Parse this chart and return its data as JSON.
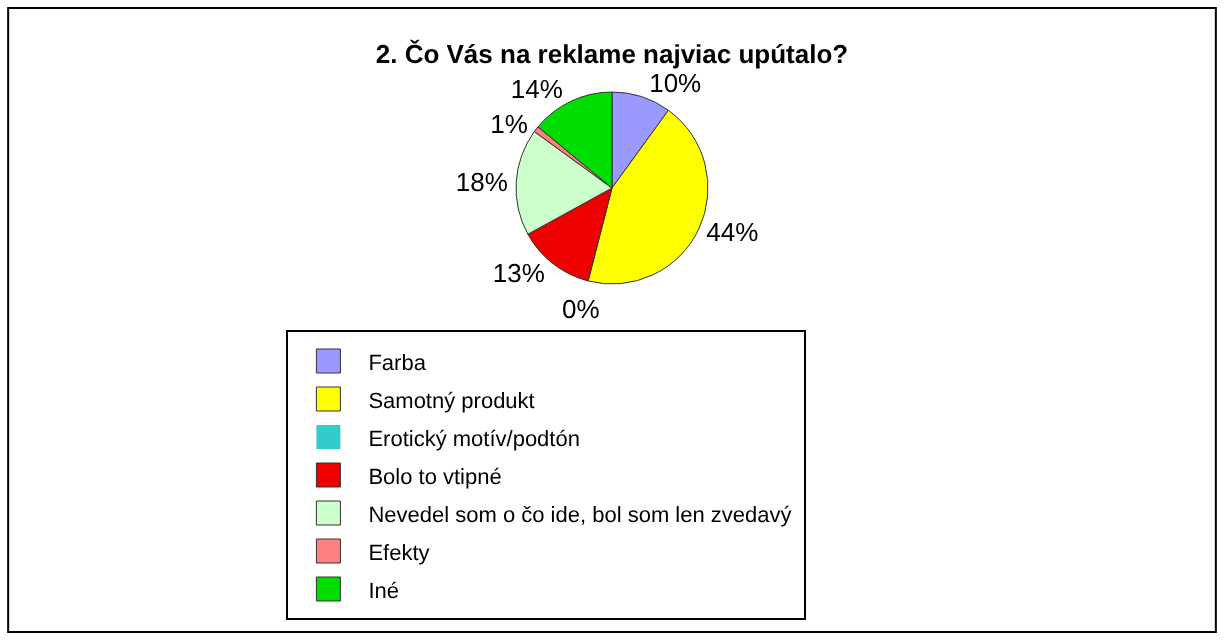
{
  "chart_data": {
    "type": "pie",
    "title": "2. Čo Vás na reklame najviac upútalo?",
    "categories": [
      "Farba",
      "Samotný produkt",
      "Erotický motív/podtón",
      "Bolo to vtipné",
      "Nevedel som o čo ide, bol som len zvedavý",
      "Efekty",
      "Iné"
    ],
    "values": [
      10,
      44,
      0,
      13,
      18,
      1,
      14
    ],
    "colors": [
      "#9999ff",
      "#ffff00",
      "#33cccc",
      "#ee0000",
      "#ccffcc",
      "#ff8080",
      "#00dd00"
    ],
    "value_labels": [
      "10%",
      "44%",
      "0%",
      "13%",
      "18%",
      "1%",
      "14%"
    ],
    "legend": "bottom"
  }
}
